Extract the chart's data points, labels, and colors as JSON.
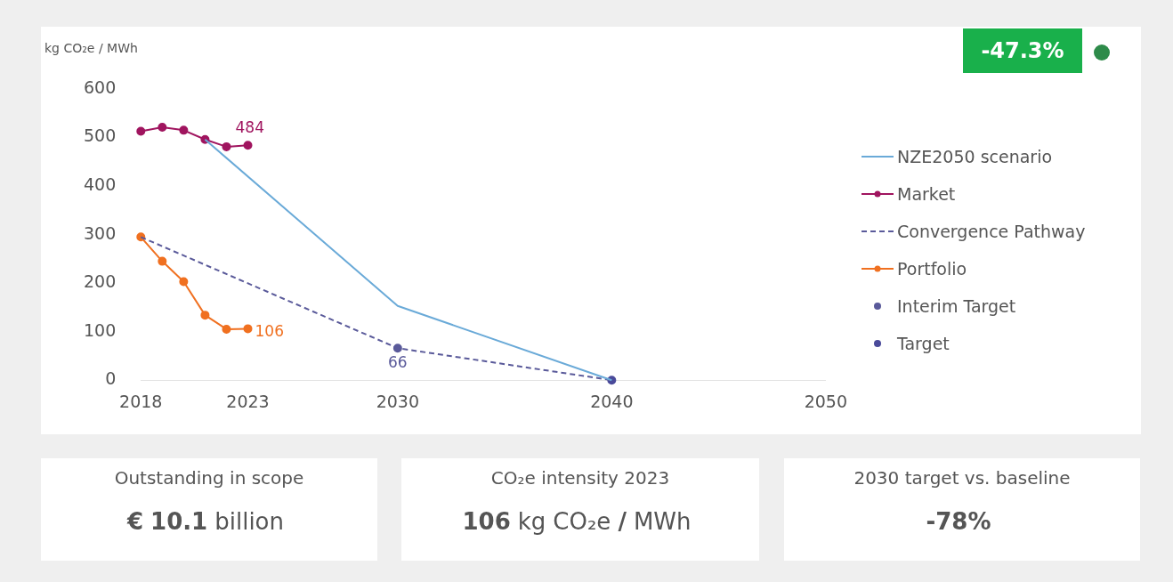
{
  "chart_data": {
    "type": "line",
    "ylabel": "kg CO₂e / MWh",
    "xlim": [
      2018,
      2050
    ],
    "xticks": [
      2018,
      2023,
      2030,
      2040,
      2050
    ],
    "ylim": [
      0,
      600
    ],
    "yticks": [
      0,
      100,
      200,
      300,
      400,
      500,
      600
    ],
    "grid": false,
    "legend": "right",
    "series": [
      {
        "name": "NZE2050 scenario",
        "type": "line",
        "color": "#6aaad8",
        "marker": "none",
        "line_style": "solid",
        "x": [
          2021,
          2030,
          2040
        ],
        "values": [
          496,
          153,
          0
        ]
      },
      {
        "name": "Market",
        "type": "line",
        "color": "#a0155f",
        "marker": "circle",
        "line_style": "solid",
        "x": [
          2018,
          2019,
          2020,
          2021,
          2022,
          2023
        ],
        "values": [
          513,
          521,
          515,
          496,
          481,
          484
        ],
        "value_labels": [
          null,
          null,
          null,
          null,
          null,
          "484"
        ]
      },
      {
        "name": "Convergence Pathway",
        "type": "line",
        "color": "#5a5a9a",
        "marker": "none",
        "line_style": "dashed",
        "x": [
          2018,
          2030,
          2040
        ],
        "values": [
          295,
          66,
          0
        ]
      },
      {
        "name": "Portfolio",
        "type": "line",
        "color": "#f07020",
        "marker": "circle",
        "line_style": "solid",
        "x": [
          2018,
          2019,
          2020,
          2021,
          2022,
          2023
        ],
        "values": [
          295,
          245,
          203,
          134,
          105,
          106
        ],
        "value_labels": [
          null,
          null,
          null,
          null,
          null,
          "106"
        ]
      },
      {
        "name": "Interim Target",
        "type": "scatter",
        "color": "#5a5a9a",
        "marker": "circle",
        "x": [
          2030
        ],
        "values": [
          66
        ],
        "value_labels": [
          "66"
        ]
      },
      {
        "name": "Target",
        "type": "scatter",
        "color": "#4a4a9a",
        "marker": "circle",
        "x": [
          2040
        ],
        "values": [
          0
        ]
      }
    ],
    "annotations": [
      "-47.3%",
      "Outstanding in scope",
      "€ 10.1 billion",
      "CO₂e intensity 2023",
      "106 kg CO₂e / MWh",
      "2030 target vs. baseline",
      "-78%"
    ]
  }
}
